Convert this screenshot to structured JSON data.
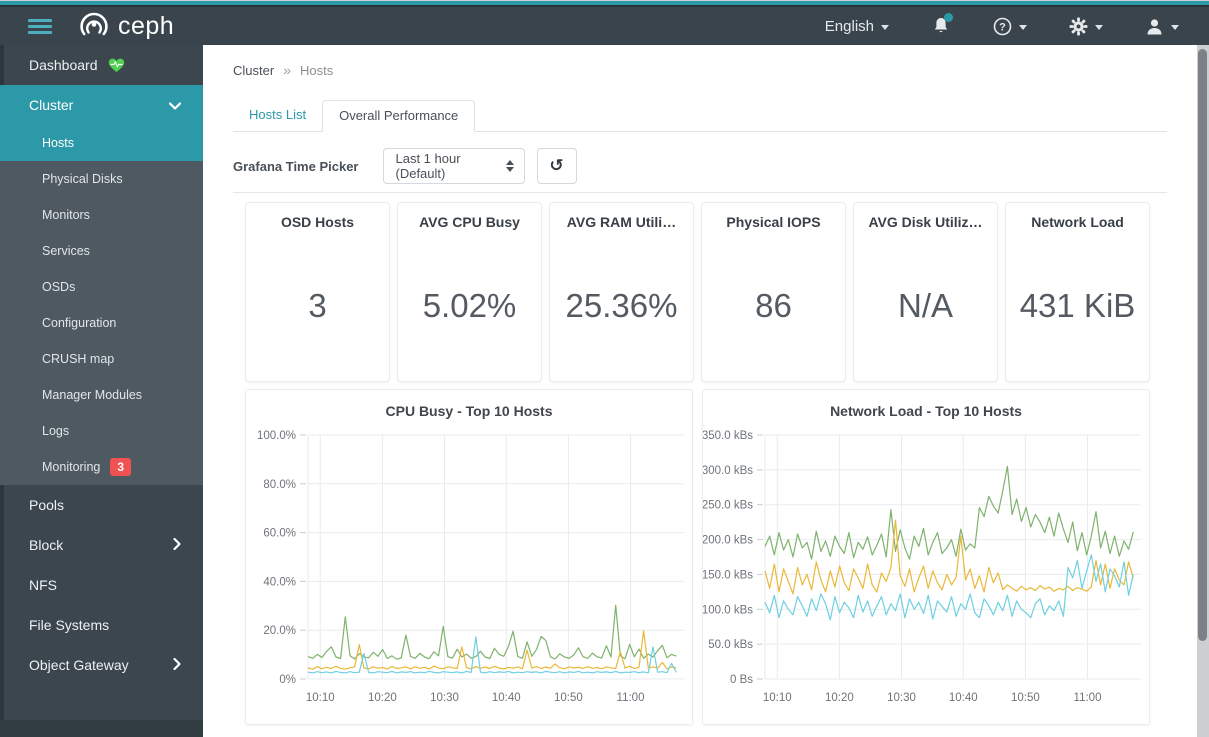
{
  "navbar": {
    "brand": "ceph",
    "language_label": "English"
  },
  "sidebar": {
    "items": [
      {
        "label": "Dashboard"
      },
      {
        "label": "Cluster"
      },
      {
        "label": "Hosts"
      },
      {
        "label": "Physical Disks"
      },
      {
        "label": "Monitors"
      },
      {
        "label": "Services"
      },
      {
        "label": "OSDs"
      },
      {
        "label": "Configuration"
      },
      {
        "label": "CRUSH map"
      },
      {
        "label": "Manager Modules"
      },
      {
        "label": "Logs"
      },
      {
        "label": "Monitoring",
        "badge": "3"
      },
      {
        "label": "Pools"
      },
      {
        "label": "Block"
      },
      {
        "label": "NFS"
      },
      {
        "label": "File Systems"
      },
      {
        "label": "Object Gateway"
      }
    ]
  },
  "breadcrumb": {
    "root": "Cluster",
    "separator": "»",
    "current": "Hosts"
  },
  "tabs": [
    {
      "label": "Hosts List",
      "active": false
    },
    {
      "label": "Overall Performance",
      "active": true
    }
  ],
  "time_picker": {
    "label": "Grafana Time Picker",
    "value": "Last 1 hour (Default)",
    "refresh_icon": "↺"
  },
  "stat_cards": [
    {
      "title": "OSD Hosts",
      "value": "3"
    },
    {
      "title": "AVG CPU Busy",
      "value": "5.02%"
    },
    {
      "title": "AVG RAM Utili…",
      "value": "25.36%"
    },
    {
      "title": "Physical IOPS",
      "value": "86"
    },
    {
      "title": "AVG Disk Utiliz…",
      "value": "N/A"
    },
    {
      "title": "Network Load",
      "value": "431 KiB"
    }
  ],
  "colors": {
    "accent_teal": "#2b99a8",
    "badge_red": "#f05152",
    "series_green": "#7eb26d",
    "series_amber": "#eab839",
    "series_blue": "#6ed0e0"
  },
  "chart_data": [
    {
      "type": "line",
      "title": "CPU Busy - Top 10 Hosts",
      "xlabel": "",
      "ylabel": "",
      "ylim": [
        0,
        100
      ],
      "grid": true,
      "legend": "none",
      "y_ticks": [
        {
          "v": 0,
          "label": "0%"
        },
        {
          "v": 20,
          "label": "20.0%"
        },
        {
          "v": 40,
          "label": "40.0%"
        },
        {
          "v": 60,
          "label": "60.0%"
        },
        {
          "v": 80,
          "label": "80.0%"
        },
        {
          "v": 100,
          "label": "100.0%"
        }
      ],
      "x_ticks": [
        {
          "f": 0.033,
          "label": "10:10"
        },
        {
          "f": 0.2,
          "label": "10:20"
        },
        {
          "f": 0.367,
          "label": "10:30"
        },
        {
          "f": 0.533,
          "label": "10:40"
        },
        {
          "f": 0.7,
          "label": "10:50"
        },
        {
          "f": 0.867,
          "label": "11:00"
        }
      ],
      "series": [
        {
          "name": "green",
          "color": "#7eb26d",
          "values": [
            9.2,
            8.5,
            10.1,
            8.8,
            11.3,
            13.2,
            9.0,
            8.4,
            25.5,
            9.6,
            8.2,
            10.4,
            9.1,
            8.7,
            11.0,
            9.3,
            12.1,
            8.4,
            9.5,
            8.1,
            8.6,
            18.0,
            9.2,
            8.5,
            10.5,
            9.0,
            8.3,
            11.2,
            9.5,
            21.5,
            9.1,
            8.6,
            12.2,
            9.0,
            10.2,
            8.5,
            9.2,
            11.4,
            9.0,
            8.4,
            12.6,
            10.1,
            9.3,
            13.4,
            19.6,
            9.2,
            8.5,
            15.2,
            9.3,
            12.0,
            17.4,
            15.8,
            9.1,
            8.2,
            10.3,
            9.0,
            8.5,
            9.8,
            12.8,
            9.2,
            8.4,
            10.6,
            9.1,
            8.6,
            13.6,
            9.0,
            30.2,
            9.5,
            8.3,
            14.2,
            9.1,
            12.3,
            8.5,
            10.2,
            9.0,
            11.6,
            13.8,
            8.7,
            10.1,
            9.4
          ]
        },
        {
          "name": "amber",
          "color": "#eab839",
          "values": [
            4.5,
            4.0,
            5.1,
            4.2,
            4.8,
            4.3,
            5.2,
            4.4,
            4.0,
            4.6,
            5.0,
            14.1,
            4.5,
            4.2,
            5.0,
            4.4,
            4.7,
            4.1,
            5.1,
            4.3,
            4.6,
            4.9,
            4.2,
            5.0,
            4.4,
            4.8,
            4.1,
            5.3,
            4.5,
            4.2,
            5.0,
            4.6,
            4.3,
            13.2,
            4.7,
            4.2,
            5.1,
            4.4,
            4.9,
            4.3,
            5.2,
            4.5,
            4.1,
            4.8,
            4.4,
            5.0,
            4.2,
            11.8,
            4.5,
            5.1,
            4.3,
            4.9,
            4.4,
            6.2,
            4.6,
            4.2,
            5.0,
            4.5,
            4.8,
            4.3,
            5.1,
            4.4,
            4.7,
            4.2,
            5.0,
            4.6,
            4.3,
            11.2,
            4.5,
            5.2,
            4.3,
            4.8,
            19.8,
            4.5,
            5.0,
            4.4,
            6.8,
            4.2,
            4.9,
            4.5
          ]
        },
        {
          "name": "blue",
          "color": "#6ed0e0",
          "values": [
            2.8,
            2.5,
            3.0,
            2.6,
            2.9,
            2.5,
            3.1,
            2.7,
            2.5,
            3.0,
            2.6,
            2.8,
            10.5,
            2.7,
            2.5,
            3.0,
            2.8,
            2.6,
            3.1,
            2.5,
            2.9,
            2.7,
            3.0,
            2.5,
            2.8,
            2.6,
            3.1,
            2.7,
            2.5,
            3.0,
            2.8,
            2.6,
            2.9,
            2.5,
            3.1,
            2.7,
            17.2,
            2.8,
            2.5,
            3.0,
            2.6,
            2.9,
            2.7,
            3.1,
            2.5,
            2.8,
            2.6,
            3.0,
            2.7,
            2.9,
            2.5,
            3.1,
            2.8,
            2.6,
            3.0,
            2.5,
            2.9,
            2.7,
            3.1,
            2.6,
            2.8,
            2.5,
            3.0,
            2.7,
            2.9,
            2.6,
            3.1,
            2.5,
            2.8,
            2.7,
            3.0,
            2.6,
            2.9,
            2.5,
            13.2,
            2.8,
            3.0,
            2.6,
            6.4,
            2.7
          ]
        }
      ]
    },
    {
      "type": "line",
      "title": "Network Load - Top 10 Hosts",
      "xlabel": "",
      "ylabel": "",
      "ylim": [
        0,
        350
      ],
      "grid": true,
      "legend": "none",
      "y_ticks": [
        {
          "v": 0,
          "label": "0 Bs"
        },
        {
          "v": 50,
          "label": "50.0 kBs"
        },
        {
          "v": 100,
          "label": "100.0 kBs"
        },
        {
          "v": 150,
          "label": "150.0 kBs"
        },
        {
          "v": 200,
          "label": "200.0 kBs"
        },
        {
          "v": 250,
          "label": "250.0 kBs"
        },
        {
          "v": 300,
          "label": "300.0 kBs"
        },
        {
          "v": 350,
          "label": "350.0 kBs"
        }
      ],
      "x_ticks": [
        {
          "f": 0.033,
          "label": "10:10"
        },
        {
          "f": 0.2,
          "label": "10:20"
        },
        {
          "f": 0.367,
          "label": "10:30"
        },
        {
          "f": 0.533,
          "label": "10:40"
        },
        {
          "f": 0.7,
          "label": "10:50"
        },
        {
          "f": 0.867,
          "label": "11:00"
        }
      ],
      "series": [
        {
          "name": "green",
          "color": "#7eb26d",
          "values": [
            190,
            205,
            178,
            210,
            185,
            200,
            175,
            208,
            188,
            196,
            172,
            212,
            183,
            198,
            176,
            205,
            190,
            180,
            210,
            174,
            196,
            186,
            204,
            178,
            192,
            208,
            175,
            243,
            183,
            214,
            188,
            172,
            205,
            190,
            216,
            178,
            196,
            210,
            180,
            188,
            200,
            176,
            215,
            185,
            194,
            188,
            246,
            233,
            262,
            248,
            238,
            270,
            305,
            236,
            258,
            226,
            246,
            218,
            236,
            225,
            210,
            232,
            205,
            238,
            215,
            196,
            225,
            184,
            210,
            178,
            205,
            240,
            188,
            212,
            180,
            205,
            176,
            198,
            186,
            211
          ]
        },
        {
          "name": "amber",
          "color": "#eab839",
          "values": [
            155,
            130,
            165,
            125,
            158,
            140,
            122,
            160,
            135,
            150,
            128,
            168,
            142,
            125,
            155,
            132,
            162,
            138,
            127,
            158,
            145,
            130,
            165,
            135,
            125,
            152,
            140,
            160,
            228,
            148,
            133,
            158,
            125,
            145,
            162,
            130,
            155,
            138,
            128,
            150,
            135,
            146,
            205,
            142,
            158,
            130,
            148,
            125,
            160,
            138,
            152,
            128,
            135,
            130,
            126,
            133,
            128,
            131,
            127,
            134,
            129,
            132,
            126,
            130,
            128,
            133,
            127,
            131,
            129,
            126,
            132,
            170,
            135,
            165,
            130,
            158,
            142,
            135,
            168,
            145
          ]
        },
        {
          "name": "blue",
          "color": "#6ed0e0",
          "values": [
            110,
            95,
            120,
            88,
            112,
            100,
            92,
            118,
            105,
            90,
            115,
            98,
            122,
            108,
            85,
            118,
            95,
            110,
            102,
            88,
            120,
            96,
            112,
            90,
            105,
            118,
            92,
            108,
            98,
            122,
            88,
            115,
            100,
            110,
            94,
            120,
            86,
            112,
            104,
            96,
            118,
            90,
            108,
            100,
            122,
            95,
            88,
            115,
            105,
            92,
            110,
            98,
            120,
            90,
            112,
            100,
            95,
            88,
            108,
            115,
            92,
            105,
            98,
            112,
            90,
            160,
            145,
            170,
            130,
            155,
            178,
            140,
            165,
            125,
            158,
            148,
            132,
            168,
            120,
            150
          ]
        }
      ]
    }
  ]
}
